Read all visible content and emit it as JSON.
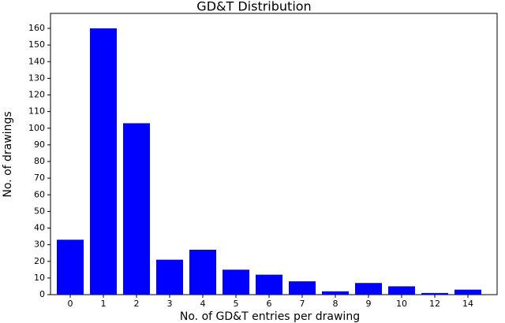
{
  "chart_data": {
    "type": "bar",
    "title": "GD&T Distribution",
    "x_label": "No. of GD&T entries per drawing",
    "y_label": "No. of drawings",
    "categories": [
      "0",
      "1",
      "2",
      "3",
      "4",
      "5",
      "6",
      "7",
      "8",
      "9",
      "10",
      "12",
      "14"
    ],
    "values": [
      33,
      160,
      103,
      21,
      27,
      15,
      12,
      8,
      2,
      7,
      5,
      1,
      3
    ],
    "color": "#0000ff",
    "ylim": [
      0,
      169
    ],
    "yticks": [
      0,
      10,
      20,
      30,
      40,
      50,
      60,
      70,
      80,
      90,
      100,
      110,
      120,
      130,
      140,
      150,
      160
    ],
    "grid": false
  }
}
